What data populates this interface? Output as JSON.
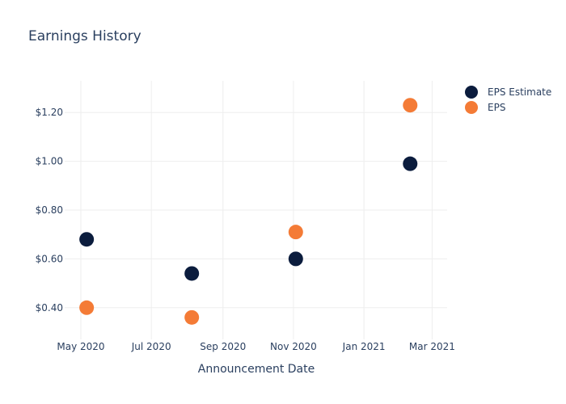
{
  "chart_data": {
    "type": "scatter",
    "title": "Earnings History",
    "xlabel": "Announcement Date",
    "ylabel": "",
    "x_ticks": [
      "May 2020",
      "Jul 2020",
      "Sep 2020",
      "Nov 2020",
      "Jan 2021",
      "Mar 2021"
    ],
    "y_ticks": [
      "$0.40",
      "$0.60",
      "$0.80",
      "$1.00",
      "$1.20"
    ],
    "ylim": [
      0.27,
      1.33
    ],
    "xlim": [
      "2020-04-17",
      "2021-03-14"
    ],
    "grid": true,
    "legend_position": "top-right",
    "series": [
      {
        "name": "EPS Estimate",
        "color": "#0b1c3d",
        "points": [
          {
            "x": "2020-05-06",
            "y": 0.68
          },
          {
            "x": "2020-08-05",
            "y": 0.54
          },
          {
            "x": "2020-11-03",
            "y": 0.6
          },
          {
            "x": "2021-02-10",
            "y": 0.99
          }
        ]
      },
      {
        "name": "EPS",
        "color": "#f47b36",
        "points": [
          {
            "x": "2020-05-06",
            "y": 0.4
          },
          {
            "x": "2020-08-05",
            "y": 0.36
          },
          {
            "x": "2020-11-03",
            "y": 0.71
          },
          {
            "x": "2021-02-10",
            "y": 1.23
          }
        ]
      }
    ]
  }
}
